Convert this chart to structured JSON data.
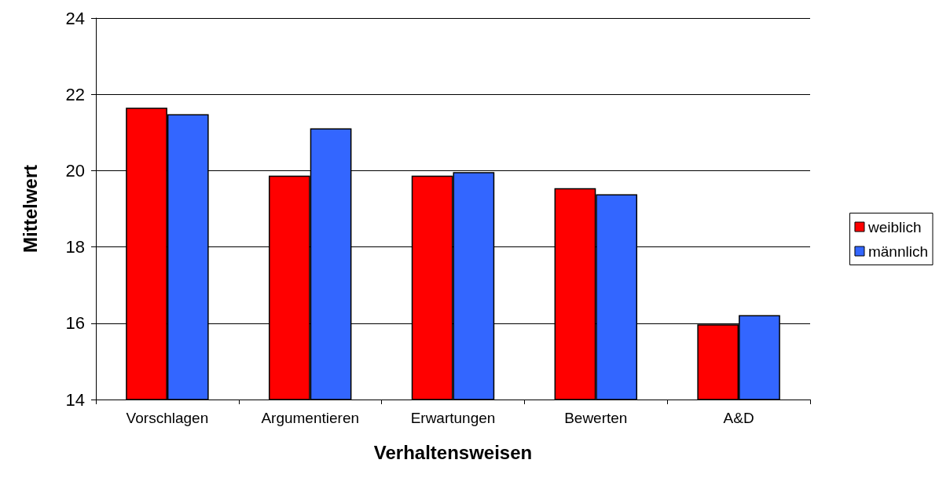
{
  "chart_data": {
    "type": "bar",
    "xlabel": "Verhaltensweisen",
    "ylabel": "Mittelwert",
    "categories": [
      "Vorschlagen",
      "Argumentieren",
      "Erwartungen",
      "Bewerten",
      "A&D"
    ],
    "series": [
      {
        "name": "weiblich",
        "color": "#ff0000",
        "values": [
          21.65,
          19.87,
          19.87,
          19.54,
          15.97
        ]
      },
      {
        "name": "männlich",
        "color": "#3366ff",
        "values": [
          21.48,
          21.11,
          19.96,
          19.38,
          16.21
        ]
      }
    ],
    "ylim": [
      14,
      24
    ],
    "yticks": [
      14,
      16,
      18,
      20,
      22,
      24
    ],
    "grid": "y",
    "legend": "right"
  }
}
